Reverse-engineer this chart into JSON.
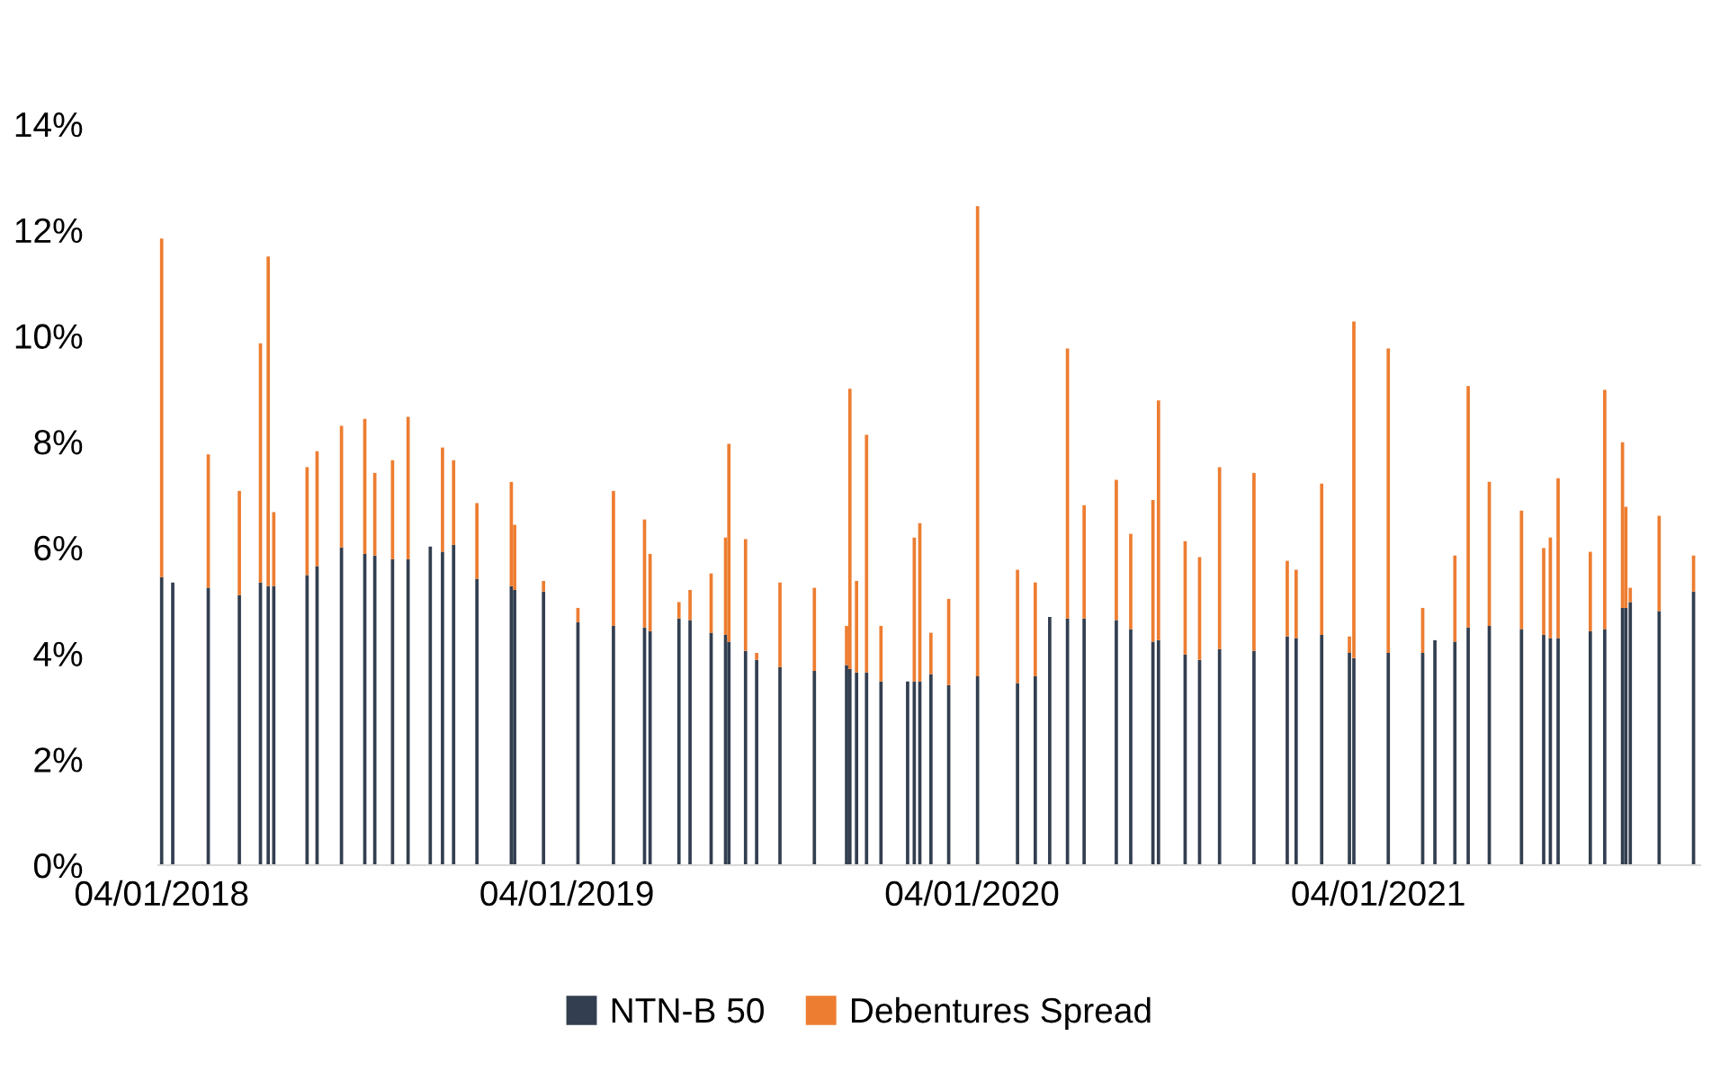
{
  "chart_data": {
    "type": "bar",
    "stacked": true,
    "x": [
      "2018-01-04",
      "2018-01-14",
      "2018-02-15",
      "2018-03-15",
      "2018-04-03",
      "2018-04-10",
      "2018-04-15",
      "2018-05-15",
      "2018-05-24",
      "2018-06-15",
      "2018-07-06",
      "2018-07-15",
      "2018-07-31",
      "2018-08-14",
      "2018-09-03",
      "2018-09-14",
      "2018-09-24",
      "2018-10-15",
      "2018-11-15",
      "2018-11-18",
      "2018-12-14",
      "2019-01-14",
      "2019-02-15",
      "2019-03-15",
      "2019-03-20",
      "2019-04-15",
      "2019-04-25",
      "2019-05-14",
      "2019-05-27",
      "2019-05-30",
      "2019-06-14",
      "2019-06-24",
      "2019-07-15",
      "2019-08-15",
      "2019-09-13",
      "2019-09-16",
      "2019-09-22",
      "2019-10-01",
      "2019-10-14",
      "2019-11-07",
      "2019-11-13",
      "2019-11-18",
      "2019-11-28",
      "2019-12-14",
      "2020-01-09",
      "2020-02-14",
      "2020-03-01",
      "2020-03-14",
      "2020-03-30",
      "2020-04-14",
      "2020-05-13",
      "2020-05-26",
      "2020-06-15",
      "2020-06-20",
      "2020-07-14",
      "2020-07-27",
      "2020-08-14",
      "2020-09-14",
      "2020-10-14",
      "2020-10-22",
      "2020-11-14",
      "2020-12-09",
      "2020-12-13",
      "2021-01-13",
      "2021-02-13",
      "2021-02-24",
      "2021-03-14",
      "2021-03-26",
      "2021-04-14",
      "2021-05-13",
      "2021-06-02",
      "2021-06-08",
      "2021-06-15",
      "2021-07-14",
      "2021-07-27",
      "2021-08-12",
      "2021-08-15",
      "2021-08-19",
      "2021-09-14",
      "2021-10-15"
    ],
    "series": [
      {
        "name": "NTN-B 50",
        "color": "#333f50",
        "values": [
          5.44,
          5.34,
          5.24,
          5.1,
          5.34,
          5.27,
          5.27,
          5.48,
          5.65,
          6.0,
          5.88,
          5.85,
          5.78,
          5.78,
          6.02,
          5.92,
          6.05,
          5.41,
          5.27,
          5.2,
          5.17,
          4.59,
          4.52,
          4.49,
          4.42,
          4.66,
          4.63,
          4.39,
          4.35,
          4.22,
          4.05,
          3.88,
          3.74,
          3.67,
          3.78,
          3.71,
          3.64,
          3.64,
          3.47,
          3.47,
          3.47,
          3.47,
          3.61,
          3.4,
          3.57,
          3.44,
          3.57,
          4.69,
          4.66,
          4.66,
          4.63,
          4.46,
          4.22,
          4.25,
          3.98,
          3.88,
          4.08,
          4.05,
          4.32,
          4.29,
          4.35,
          4.01,
          3.91,
          4.01,
          4.01,
          4.25,
          4.22,
          4.49,
          4.52,
          4.46,
          4.35,
          4.29,
          4.29,
          4.42,
          4.46,
          4.86,
          4.86,
          4.97,
          4.8,
          5.17
        ]
      },
      {
        "name": "Debentures Spread",
        "color": "#ed7d31",
        "values": [
          6.4,
          0,
          2.52,
          1.97,
          4.52,
          6.23,
          1.4,
          2.04,
          2.17,
          2.3,
          2.55,
          1.56,
          1.87,
          2.69,
          0,
          1.97,
          1.6,
          1.43,
          1.97,
          1.23,
          0.2,
          0.27,
          2.55,
          2.04,
          1.46,
          0.31,
          0.57,
          1.12,
          1.84,
          3.74,
          2.11,
          0.13,
          1.6,
          1.57,
          0.74,
          5.29,
          1.73,
          4.49,
          1.05,
          0,
          2.72,
          2.99,
          0.78,
          1.63,
          8.88,
          2.14,
          1.77,
          0,
          5.1,
          2.14,
          2.65,
          1.8,
          2.68,
          4.53,
          2.14,
          1.94,
          3.44,
          3.36,
          1.43,
          1.29,
          2.86,
          0.31,
          6.36,
          5.75,
          0.85,
          0,
          1.63,
          4.56,
          2.72,
          2.24,
          1.64,
          1.9,
          3.02,
          1.5,
          4.52,
          3.13,
          1.91,
          0.27,
          1.8,
          0.68
        ]
      }
    ],
    "xlim": [
      "2018-01-01",
      "2021-10-21"
    ],
    "xticks": [
      {
        "value": "2018-01-04",
        "label": "04/01/2018"
      },
      {
        "value": "2019-01-04",
        "label": "04/01/2019"
      },
      {
        "value": "2020-01-04",
        "label": "04/01/2020"
      },
      {
        "value": "2021-01-04",
        "label": "04/01/2021"
      }
    ],
    "ylim": [
      0,
      14
    ],
    "yticks": [
      {
        "value": 0,
        "label": "0%"
      },
      {
        "value": 2,
        "label": "2%"
      },
      {
        "value": 4,
        "label": "4%"
      },
      {
        "value": 6,
        "label": "6%"
      },
      {
        "value": 8,
        "label": "8%"
      },
      {
        "value": 10,
        "label": "10%"
      },
      {
        "value": 12,
        "label": "12%"
      },
      {
        "value": 14,
        "label": "14%"
      }
    ],
    "legend": "bottom",
    "grid": false
  }
}
